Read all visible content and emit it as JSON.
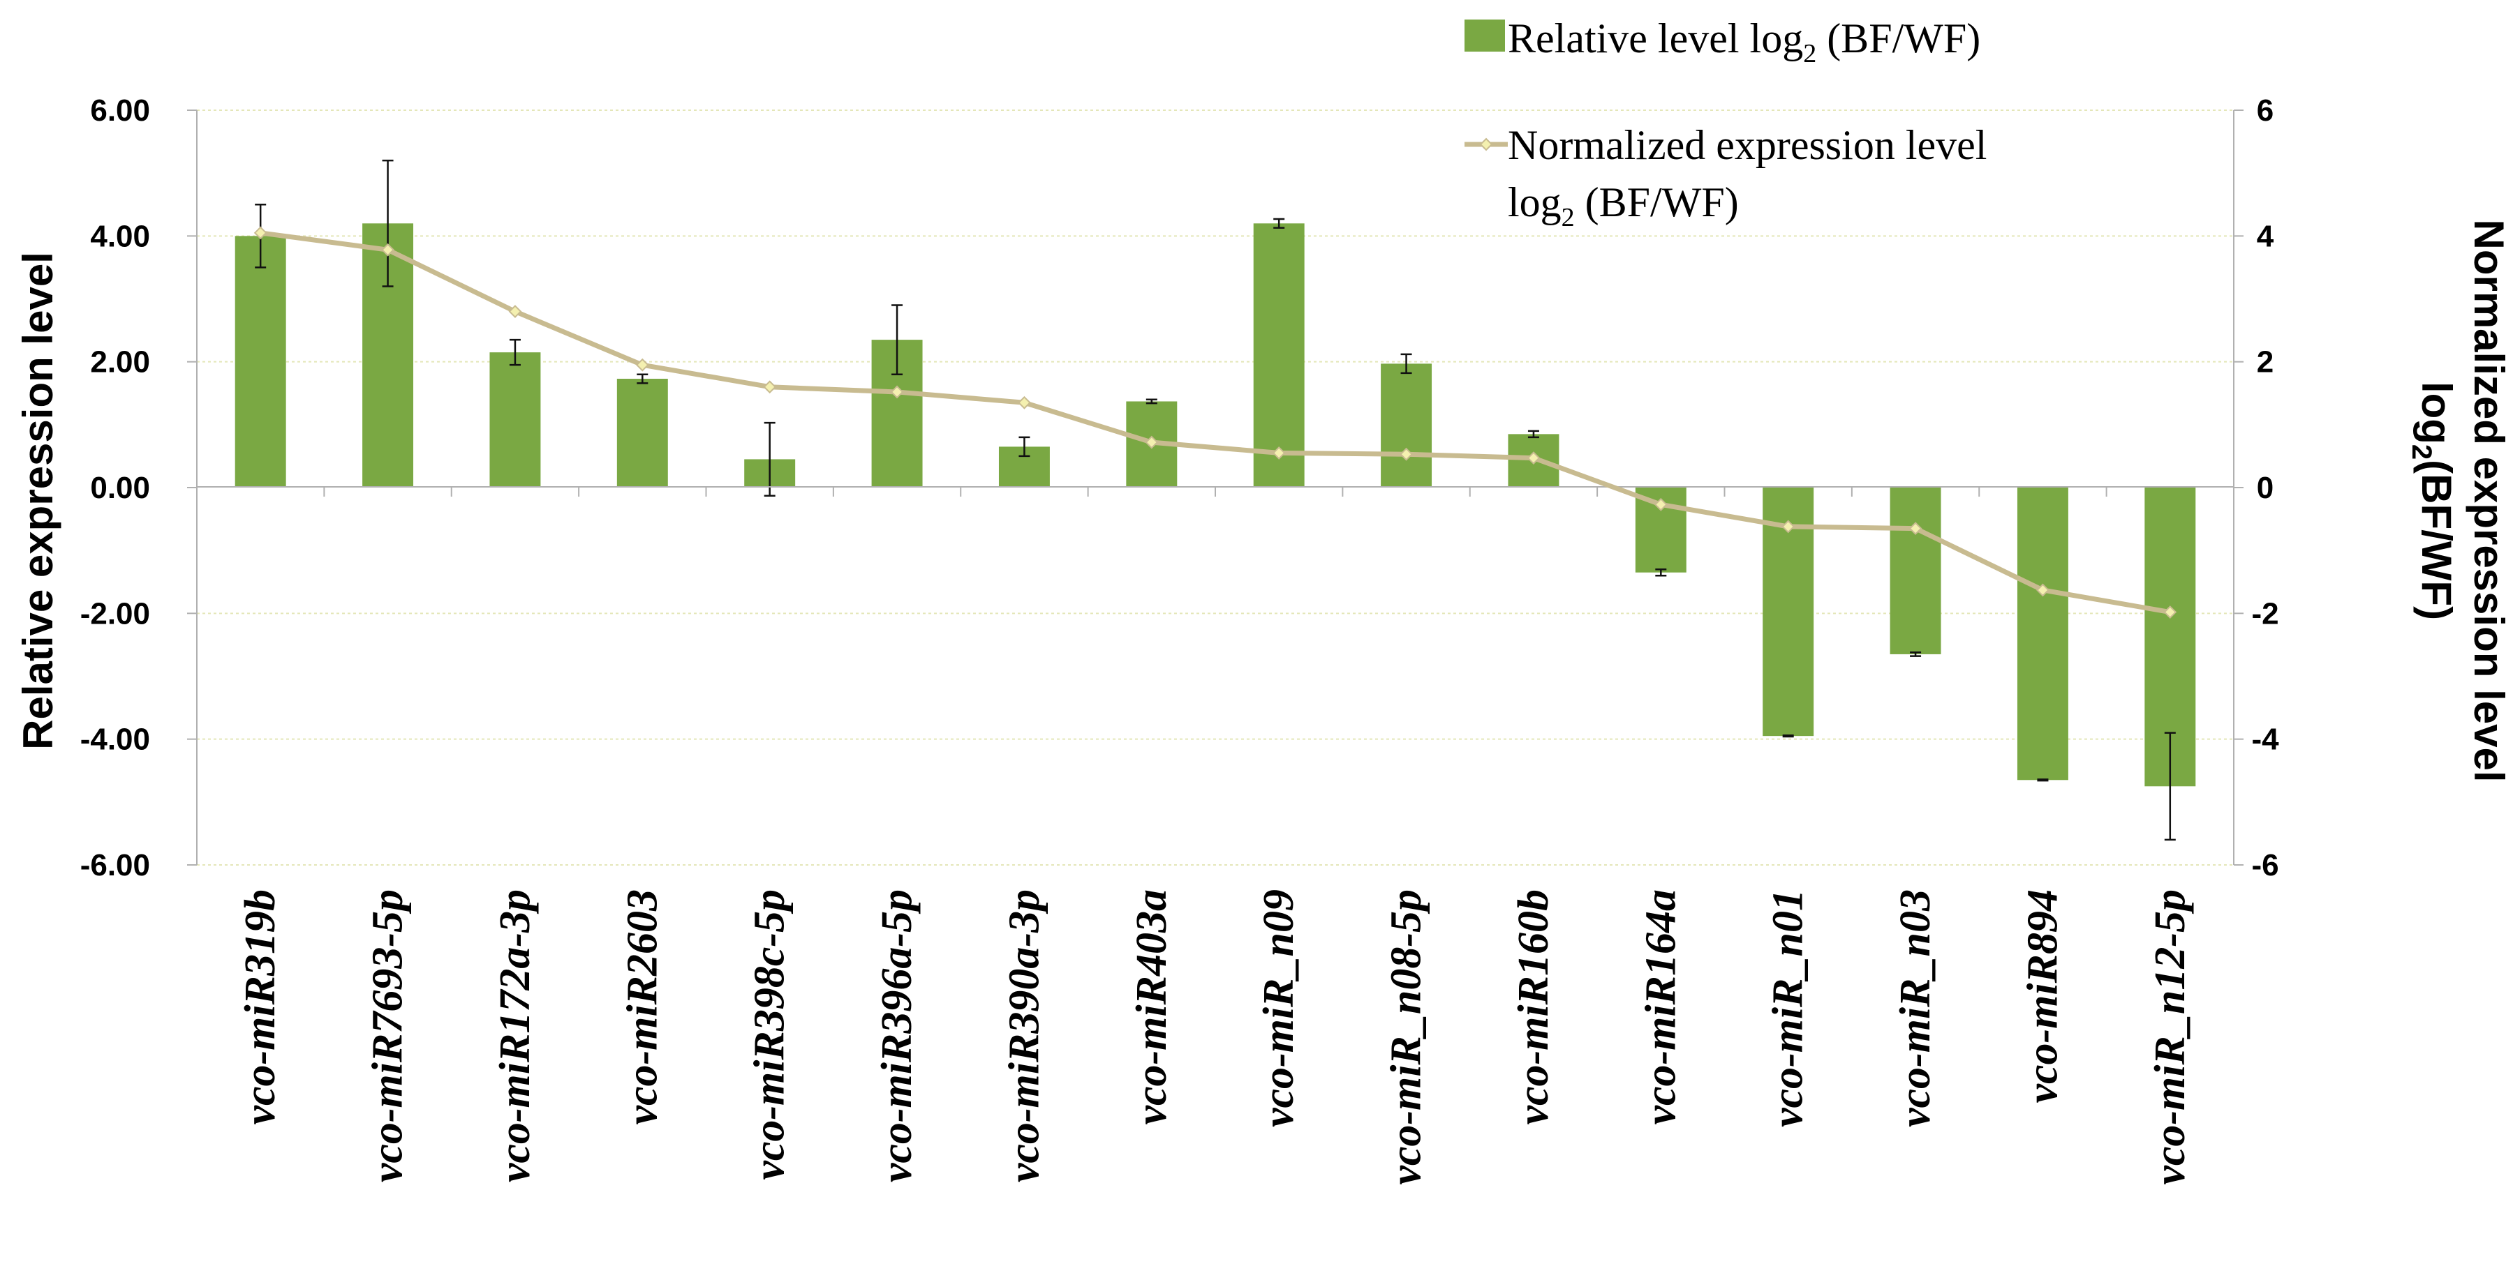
{
  "chart_data": {
    "type": "bar",
    "categories": [
      "vco-miR319b",
      "vco-miR7693-5p",
      "vco-miR172a-3p",
      "vco-miR2603",
      "vco-miR398c-5p",
      "vco-miR396a-5p",
      "vco-miR390a-3p",
      "vco-miR403a",
      "vco-miR_n09",
      "vco-miR_n08-5p",
      "vco-miR160b",
      "vco-miR164a",
      "vco-miR_n01",
      "vco-miR_n03",
      "vco-miR894",
      "vco-miR_n12-5p"
    ],
    "series": [
      {
        "name": "Relative level log2 (BF/WF)",
        "kind": "bar",
        "axis": "left",
        "color": "#7aa843",
        "values": [
          4.0,
          4.2,
          2.15,
          1.73,
          0.45,
          2.35,
          0.65,
          1.37,
          4.2,
          1.97,
          0.85,
          -1.35,
          -3.95,
          -2.65,
          -4.65,
          -4.75
        ],
        "errors": [
          0.5,
          1.0,
          0.2,
          0.07,
          0.58,
          0.55,
          0.15,
          0.03,
          0.07,
          0.15,
          0.05,
          0.05,
          0.01,
          0.03,
          0.01,
          0.85
        ]
      },
      {
        "name": "Normalized expression level log2 (BF/WF)",
        "kind": "line",
        "axis": "right",
        "color": "#c8bb90",
        "marker_color": "#f4f0b0",
        "values": [
          4.05,
          3.78,
          2.8,
          1.95,
          1.6,
          1.52,
          1.35,
          0.72,
          0.55,
          0.53,
          0.47,
          -0.27,
          -0.62,
          -0.65,
          -1.63,
          -1.98
        ]
      }
    ],
    "left_axis": {
      "title": "Relative expression level",
      "ylim": [
        -6,
        6
      ],
      "ticks": [
        6,
        4,
        2,
        0,
        -2,
        -4,
        -6
      ],
      "tick_labels": [
        "6.00",
        "4.00",
        "2.00",
        "0.00",
        "-2.00",
        "-4.00",
        "-6.00"
      ]
    },
    "right_axis": {
      "title_line1": "Normalized expression level",
      "title_line2_main": "log",
      "title_line2_sub": "2",
      "title_line2_rest": "(BF/WF)",
      "ylim": [
        -6,
        6
      ],
      "ticks": [
        6,
        4,
        2,
        0,
        -2,
        -4,
        -6
      ],
      "tick_labels": [
        "6",
        "4",
        "2",
        "0",
        "-2",
        "-4",
        "-6"
      ]
    },
    "legend": {
      "placement": "top-right",
      "bar_label_main": "Relative level log",
      "bar_label_sub": "2",
      "bar_label_rest": " (BF/WF)",
      "line_label_line1": "Normalized expression level",
      "line_label_line2_main": "log",
      "line_label_line2_sub": "2",
      "line_label_line2_rest": " (BF/WF)"
    },
    "grid": true
  }
}
